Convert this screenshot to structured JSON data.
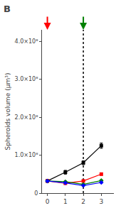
{
  "chart_data": {
    "type": "line",
    "title": "B",
    "ylabel": "Spheroids volume (μm³)",
    "x": [
      0,
      1,
      2,
      3
    ],
    "xlim": [
      -0.3,
      3.7
    ],
    "xticks": [
      0,
      1,
      2,
      3
    ],
    "ylim": [
      0,
      430000000.0
    ],
    "yticks": [
      0,
      {
        "value": 100000000.0,
        "label": "1.0×10⁸"
      },
      {
        "value": 200000000.0,
        "label": "2.0×10⁸"
      },
      {
        "value": 300000000.0,
        "label": "3.0×10⁸"
      },
      {
        "value": 400000000.0,
        "label": "4.0×10⁸"
      }
    ],
    "grid": false,
    "series": [
      {
        "color": "#000000",
        "marker": "square",
        "values": [
          32000000.0,
          55000000.0,
          80000000.0,
          125000000.0
        ],
        "errors": [
          3000000.0,
          5000000.0,
          5000000.0,
          7000000.0
        ]
      },
      {
        "color": "#ff0000",
        "marker": "square",
        "values": [
          32000000.0,
          26000000.0,
          32000000.0,
          50000000.0
        ],
        "errors": [
          3000000.0,
          2000000.0,
          2000000.0,
          3000000.0
        ]
      },
      {
        "color": "#008000",
        "marker": "diamond",
        "values": [
          32000000.0,
          30000000.0,
          23000000.0,
          33000000.0
        ],
        "errors": [
          2000000.0,
          2000000.0,
          1500000.0,
          2000000.0
        ]
      },
      {
        "color": "#0000ff",
        "marker": "diamond",
        "values": [
          32000000.0,
          27000000.0,
          20000000.0,
          28000000.0
        ],
        "errors": [
          2000000.0,
          1500000.0,
          1500000.0,
          1500000.0
        ]
      }
    ],
    "vlines": [
      {
        "x": 2.0,
        "color": "#000000",
        "line_style": "dotted"
      }
    ],
    "arrows": [
      {
        "x": 0.0,
        "color": "#ff0000"
      },
      {
        "x": 2.0,
        "color": "#008000"
      }
    ]
  }
}
